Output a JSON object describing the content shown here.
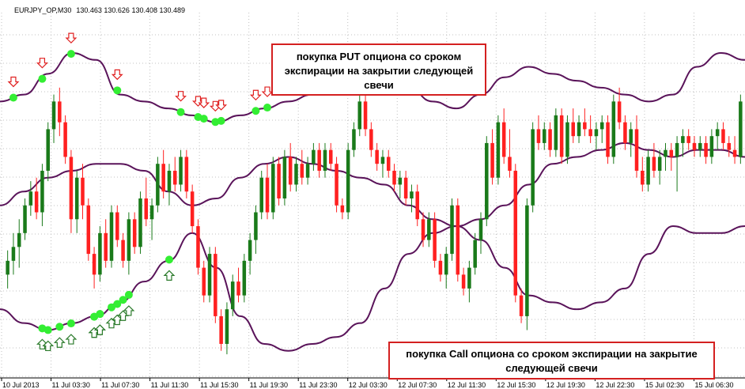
{
  "header": {
    "symbol": "EURJPY_OP,M30",
    "ohlc": "130.463 130.626 130.408 130.489"
  },
  "annotations": {
    "put_note": "покупка PUT опциона со сроком экспирации на закрытии следующей свечи",
    "call_note": "покупка Call опциона со сроком экспирации на закрытие следующей свечи"
  },
  "colors": {
    "bull": "#1a7a1a",
    "bear": "#ff2020",
    "band": "#5a145a",
    "signal_dot": "#33ee33",
    "put_arrow": "#e02020",
    "call_arrow": "#2a7a2a",
    "grid": "#c0c0c0"
  },
  "chart_data": {
    "type": "candlestick",
    "symbol": "EURJPY_OP",
    "timeframe": "M30",
    "indicator": "Bollinger Bands",
    "x_tick_labels": [
      "10 Jul 2013",
      "11 Jul 03:30",
      "11 Jul 07:30",
      "11 Jul 11:30",
      "11 Jul 15:30",
      "11 Jul 19:30",
      "11 Jul 23:30",
      "12 Jul 03:30",
      "12 Jul 07:30",
      "12 Jul 11:30",
      "12 Jul 15:30",
      "12 Jul 19:30",
      "12 Jul 22:30",
      "15 Jul 02:30",
      "15 Jul 06:30"
    ],
    "y_range": [
      0,
      100
    ],
    "candles": [
      {
        "o": 28,
        "h": 35,
        "l": 24,
        "c": 32
      },
      {
        "o": 32,
        "h": 40,
        "l": 28,
        "c": 36
      },
      {
        "o": 36,
        "h": 44,
        "l": 30,
        "c": 40
      },
      {
        "o": 40,
        "h": 50,
        "l": 38,
        "c": 48
      },
      {
        "o": 48,
        "h": 55,
        "l": 45,
        "c": 52
      },
      {
        "o": 52,
        "h": 56,
        "l": 44,
        "c": 46
      },
      {
        "o": 46,
        "h": 60,
        "l": 42,
        "c": 58
      },
      {
        "o": 58,
        "h": 72,
        "l": 55,
        "c": 70
      },
      {
        "o": 70,
        "h": 80,
        "l": 66,
        "c": 78
      },
      {
        "o": 78,
        "h": 82,
        "l": 68,
        "c": 72
      },
      {
        "o": 72,
        "h": 74,
        "l": 60,
        "c": 62
      },
      {
        "o": 62,
        "h": 64,
        "l": 40,
        "c": 44
      },
      {
        "o": 44,
        "h": 58,
        "l": 40,
        "c": 56
      },
      {
        "o": 56,
        "h": 60,
        "l": 44,
        "c": 48
      },
      {
        "o": 48,
        "h": 50,
        "l": 32,
        "c": 34
      },
      {
        "o": 34,
        "h": 36,
        "l": 24,
        "c": 28
      },
      {
        "o": 28,
        "h": 42,
        "l": 26,
        "c": 40
      },
      {
        "o": 40,
        "h": 44,
        "l": 30,
        "c": 32
      },
      {
        "o": 32,
        "h": 48,
        "l": 30,
        "c": 46
      },
      {
        "o": 46,
        "h": 48,
        "l": 36,
        "c": 38
      },
      {
        "o": 38,
        "h": 40,
        "l": 30,
        "c": 32
      },
      {
        "o": 32,
        "h": 46,
        "l": 28,
        "c": 44
      },
      {
        "o": 44,
        "h": 46,
        "l": 34,
        "c": 36
      },
      {
        "o": 36,
        "h": 52,
        "l": 34,
        "c": 50
      },
      {
        "o": 50,
        "h": 56,
        "l": 42,
        "c": 44
      },
      {
        "o": 44,
        "h": 50,
        "l": 38,
        "c": 48
      },
      {
        "o": 48,
        "h": 62,
        "l": 46,
        "c": 60
      },
      {
        "o": 60,
        "h": 64,
        "l": 50,
        "c": 52
      },
      {
        "o": 52,
        "h": 60,
        "l": 48,
        "c": 58
      },
      {
        "o": 58,
        "h": 62,
        "l": 52,
        "c": 54
      },
      {
        "o": 54,
        "h": 64,
        "l": 52,
        "c": 62
      },
      {
        "o": 62,
        "h": 64,
        "l": 50,
        "c": 52
      },
      {
        "o": 52,
        "h": 54,
        "l": 40,
        "c": 42
      },
      {
        "o": 42,
        "h": 44,
        "l": 28,
        "c": 30
      },
      {
        "o": 30,
        "h": 32,
        "l": 20,
        "c": 22
      },
      {
        "o": 22,
        "h": 36,
        "l": 20,
        "c": 34
      },
      {
        "o": 34,
        "h": 36,
        "l": 14,
        "c": 16
      },
      {
        "o": 16,
        "h": 18,
        "l": 6,
        "c": 8
      },
      {
        "o": 8,
        "h": 20,
        "l": 5,
        "c": 18
      },
      {
        "o": 18,
        "h": 28,
        "l": 16,
        "c": 26
      },
      {
        "o": 26,
        "h": 30,
        "l": 20,
        "c": 22
      },
      {
        "o": 22,
        "h": 34,
        "l": 20,
        "c": 32
      },
      {
        "o": 32,
        "h": 40,
        "l": 28,
        "c": 38
      },
      {
        "o": 38,
        "h": 48,
        "l": 34,
        "c": 46
      },
      {
        "o": 46,
        "h": 58,
        "l": 44,
        "c": 56
      },
      {
        "o": 56,
        "h": 60,
        "l": 44,
        "c": 46
      },
      {
        "o": 46,
        "h": 62,
        "l": 44,
        "c": 60
      },
      {
        "o": 60,
        "h": 62,
        "l": 48,
        "c": 50
      },
      {
        "o": 50,
        "h": 64,
        "l": 48,
        "c": 62
      },
      {
        "o": 62,
        "h": 66,
        "l": 52,
        "c": 54
      },
      {
        "o": 54,
        "h": 62,
        "l": 52,
        "c": 60
      },
      {
        "o": 60,
        "h": 64,
        "l": 54,
        "c": 56
      },
      {
        "o": 56,
        "h": 62,
        "l": 54,
        "c": 60
      },
      {
        "o": 60,
        "h": 66,
        "l": 58,
        "c": 64
      },
      {
        "o": 64,
        "h": 66,
        "l": 56,
        "c": 58
      },
      {
        "o": 58,
        "h": 66,
        "l": 56,
        "c": 64
      },
      {
        "o": 64,
        "h": 66,
        "l": 58,
        "c": 60
      },
      {
        "o": 60,
        "h": 62,
        "l": 46,
        "c": 48
      },
      {
        "o": 48,
        "h": 50,
        "l": 44,
        "c": 46
      },
      {
        "o": 46,
        "h": 66,
        "l": 44,
        "c": 64
      },
      {
        "o": 64,
        "h": 72,
        "l": 62,
        "c": 70
      },
      {
        "o": 70,
        "h": 80,
        "l": 68,
        "c": 78
      },
      {
        "o": 78,
        "h": 80,
        "l": 68,
        "c": 70
      },
      {
        "o": 70,
        "h": 72,
        "l": 62,
        "c": 64
      },
      {
        "o": 64,
        "h": 66,
        "l": 58,
        "c": 60
      },
      {
        "o": 60,
        "h": 64,
        "l": 56,
        "c": 62
      },
      {
        "o": 62,
        "h": 64,
        "l": 56,
        "c": 58
      },
      {
        "o": 58,
        "h": 60,
        "l": 52,
        "c": 54
      },
      {
        "o": 54,
        "h": 58,
        "l": 50,
        "c": 56
      },
      {
        "o": 56,
        "h": 58,
        "l": 48,
        "c": 50
      },
      {
        "o": 50,
        "h": 54,
        "l": 46,
        "c": 52
      },
      {
        "o": 52,
        "h": 54,
        "l": 42,
        "c": 44
      },
      {
        "o": 44,
        "h": 46,
        "l": 36,
        "c": 38
      },
      {
        "o": 38,
        "h": 46,
        "l": 36,
        "c": 44
      },
      {
        "o": 44,
        "h": 46,
        "l": 30,
        "c": 32
      },
      {
        "o": 32,
        "h": 34,
        "l": 26,
        "c": 28
      },
      {
        "o": 28,
        "h": 36,
        "l": 24,
        "c": 34
      },
      {
        "o": 34,
        "h": 50,
        "l": 32,
        "c": 48
      },
      {
        "o": 48,
        "h": 50,
        "l": 26,
        "c": 28
      },
      {
        "o": 28,
        "h": 30,
        "l": 22,
        "c": 24
      },
      {
        "o": 24,
        "h": 32,
        "l": 20,
        "c": 30
      },
      {
        "o": 30,
        "h": 40,
        "l": 28,
        "c": 38
      },
      {
        "o": 38,
        "h": 46,
        "l": 34,
        "c": 44
      },
      {
        "o": 44,
        "h": 68,
        "l": 42,
        "c": 66
      },
      {
        "o": 66,
        "h": 70,
        "l": 54,
        "c": 56
      },
      {
        "o": 56,
        "h": 74,
        "l": 54,
        "c": 72
      },
      {
        "o": 72,
        "h": 76,
        "l": 60,
        "c": 62
      },
      {
        "o": 62,
        "h": 70,
        "l": 56,
        "c": 58
      },
      {
        "o": 58,
        "h": 60,
        "l": 20,
        "c": 22
      },
      {
        "o": 22,
        "h": 24,
        "l": 14,
        "c": 16
      },
      {
        "o": 16,
        "h": 50,
        "l": 12,
        "c": 48
      },
      {
        "o": 48,
        "h": 72,
        "l": 46,
        "c": 70
      },
      {
        "o": 70,
        "h": 74,
        "l": 64,
        "c": 66
      },
      {
        "o": 66,
        "h": 72,
        "l": 64,
        "c": 70
      },
      {
        "o": 70,
        "h": 72,
        "l": 62,
        "c": 64
      },
      {
        "o": 64,
        "h": 76,
        "l": 62,
        "c": 74
      },
      {
        "o": 74,
        "h": 76,
        "l": 60,
        "c": 62
      },
      {
        "o": 62,
        "h": 74,
        "l": 60,
        "c": 72
      },
      {
        "o": 72,
        "h": 76,
        "l": 66,
        "c": 68
      },
      {
        "o": 68,
        "h": 74,
        "l": 66,
        "c": 72
      },
      {
        "o": 72,
        "h": 76,
        "l": 68,
        "c": 70
      },
      {
        "o": 70,
        "h": 74,
        "l": 66,
        "c": 68
      },
      {
        "o": 68,
        "h": 72,
        "l": 64,
        "c": 70
      },
      {
        "o": 70,
        "h": 74,
        "l": 66,
        "c": 72
      },
      {
        "o": 72,
        "h": 74,
        "l": 60,
        "c": 62
      },
      {
        "o": 62,
        "h": 80,
        "l": 60,
        "c": 78
      },
      {
        "o": 78,
        "h": 82,
        "l": 70,
        "c": 72
      },
      {
        "o": 72,
        "h": 74,
        "l": 64,
        "c": 66
      },
      {
        "o": 66,
        "h": 72,
        "l": 62,
        "c": 70
      },
      {
        "o": 70,
        "h": 74,
        "l": 56,
        "c": 58
      },
      {
        "o": 58,
        "h": 62,
        "l": 52,
        "c": 54
      },
      {
        "o": 54,
        "h": 64,
        "l": 52,
        "c": 62
      },
      {
        "o": 62,
        "h": 66,
        "l": 56,
        "c": 58
      },
      {
        "o": 58,
        "h": 64,
        "l": 54,
        "c": 62
      },
      {
        "o": 62,
        "h": 66,
        "l": 58,
        "c": 64
      },
      {
        "o": 64,
        "h": 66,
        "l": 58,
        "c": 62
      },
      {
        "o": 62,
        "h": 68,
        "l": 52,
        "c": 66
      },
      {
        "o": 66,
        "h": 70,
        "l": 62,
        "c": 68
      },
      {
        "o": 68,
        "h": 70,
        "l": 64,
        "c": 66
      },
      {
        "o": 66,
        "h": 68,
        "l": 62,
        "c": 64
      },
      {
        "o": 64,
        "h": 68,
        "l": 62,
        "c": 66
      },
      {
        "o": 66,
        "h": 68,
        "l": 60,
        "c": 62
      },
      {
        "o": 62,
        "h": 70,
        "l": 60,
        "c": 68
      },
      {
        "o": 68,
        "h": 72,
        "l": 64,
        "c": 70
      },
      {
        "o": 70,
        "h": 72,
        "l": 64,
        "c": 66
      },
      {
        "o": 66,
        "h": 68,
        "l": 62,
        "c": 64
      },
      {
        "o": 64,
        "h": 68,
        "l": 60,
        "c": 62
      },
      {
        "o": 62,
        "h": 80,
        "l": 60,
        "c": 78
      }
    ],
    "bands": {
      "upper": [
        78,
        80,
        86,
        92,
        90,
        80,
        78,
        76,
        74,
        72,
        74,
        76,
        78,
        80,
        80,
        84,
        86,
        82,
        78,
        76,
        80,
        85,
        88,
        86,
        84,
        82,
        80,
        78,
        80,
        88,
        92,
        90
      ],
      "middle": [
        48,
        52,
        56,
        58,
        60,
        60,
        58,
        52,
        48,
        50,
        56,
        60,
        62,
        60,
        58,
        56,
        54,
        48,
        44,
        42,
        44,
        48,
        54,
        60,
        62,
        64,
        66,
        64,
        62,
        64,
        64,
        62
      ],
      "lower": [
        18,
        14,
        12,
        14,
        16,
        20,
        26,
        32,
        40,
        30,
        16,
        8,
        6,
        8,
        10,
        14,
        24,
        34,
        40,
        42,
        38,
        30,
        22,
        20,
        18,
        20,
        24,
        34,
        42,
        40,
        40,
        42
      ]
    },
    "put_signals": [
      6,
      42,
      84,
      141,
      218,
      242,
      252,
      265,
      272,
      313,
      332
    ],
    "call_signals": [
      46,
      55,
      65,
      82,
      107,
      112,
      115,
      118,
      135,
      138,
      148,
      152,
      205
    ]
  }
}
